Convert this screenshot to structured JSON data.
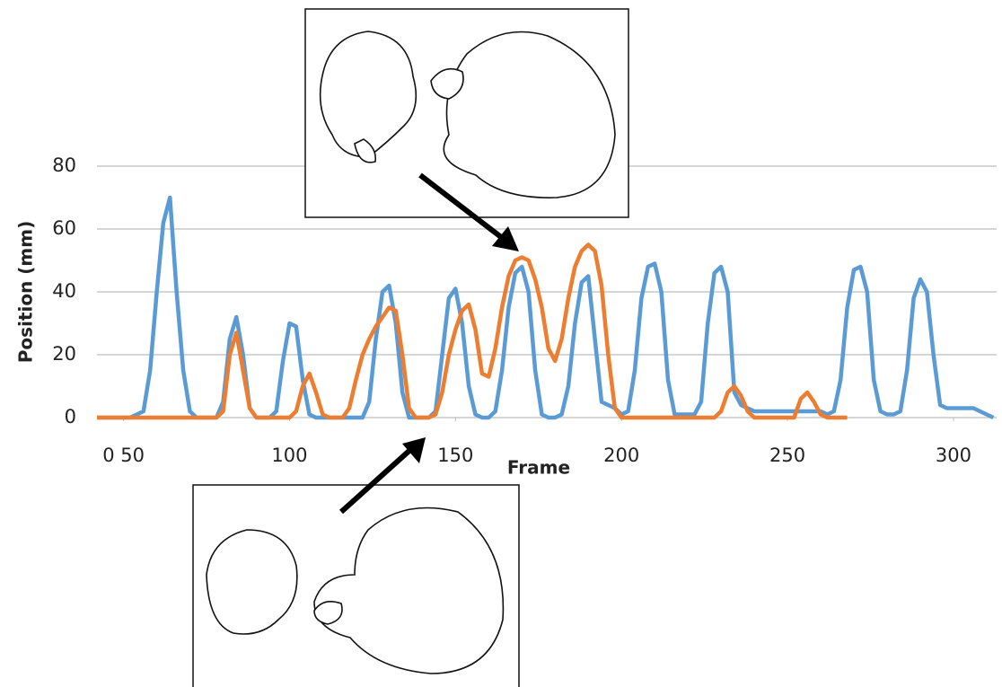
{
  "chart_data": {
    "type": "line",
    "x_label": "Frame",
    "y_label": "Position (mm)",
    "x": [
      42,
      44,
      46,
      48,
      50,
      52,
      54,
      56,
      58,
      60,
      62,
      64,
      66,
      68,
      70,
      72,
      74,
      76,
      78,
      80,
      82,
      84,
      86,
      88,
      90,
      92,
      94,
      96,
      98,
      100,
      102,
      104,
      106,
      108,
      110,
      112,
      114,
      116,
      118,
      120,
      122,
      124,
      126,
      128,
      130,
      132,
      134,
      136,
      138,
      140,
      142,
      144,
      146,
      148,
      150,
      152,
      154,
      156,
      158,
      160,
      162,
      164,
      166,
      168,
      170,
      172,
      174,
      176,
      178,
      180,
      182,
      184,
      186,
      188,
      190,
      192,
      194,
      196,
      198,
      200,
      202,
      204,
      206,
      208,
      210,
      212,
      214,
      216,
      218,
      220,
      222,
      224,
      226,
      228,
      230,
      232,
      234,
      236,
      238,
      240,
      242,
      244,
      246,
      248,
      250,
      252,
      254,
      256,
      258,
      260,
      262,
      264,
      266,
      268,
      270,
      272,
      274,
      276,
      278,
      280,
      282,
      284,
      286,
      288,
      290,
      292,
      294,
      296,
      298,
      300,
      302,
      304,
      306,
      308,
      310,
      312
    ],
    "series": [
      {
        "color": "#5b9bd5",
        "values": [
          0,
          0,
          0,
          0,
          0,
          0,
          1,
          2,
          15,
          40,
          62,
          70,
          40,
          15,
          2,
          0,
          0,
          0,
          0,
          5,
          25,
          32,
          20,
          3,
          0,
          0,
          0,
          2,
          18,
          30,
          29,
          12,
          1,
          0,
          0,
          0,
          0,
          0,
          0,
          0,
          0,
          5,
          25,
          40,
          42,
          30,
          8,
          0,
          0,
          0,
          0,
          2,
          20,
          38,
          41,
          30,
          10,
          1,
          0,
          0,
          2,
          15,
          35,
          46,
          48,
          40,
          15,
          1,
          0,
          0,
          1,
          10,
          30,
          43,
          45,
          25,
          5,
          4,
          3,
          1,
          2,
          15,
          38,
          48,
          49,
          40,
          12,
          1,
          1,
          1,
          1,
          5,
          30,
          46,
          48,
          40,
          8,
          4,
          3,
          2,
          2,
          2,
          2,
          2,
          2,
          2,
          2,
          2,
          2,
          2,
          1,
          2,
          12,
          35,
          47,
          48,
          40,
          12,
          2,
          1,
          1,
          2,
          15,
          38,
          44,
          40,
          20,
          4,
          3,
          3,
          3,
          3,
          3,
          2,
          1,
          0
        ]
      },
      {
        "color": "#ed7d31",
        "values": [
          0,
          0,
          0,
          0,
          0,
          0,
          0,
          0,
          0,
          0,
          0,
          0,
          0,
          0,
          0,
          0,
          0,
          0,
          0,
          2,
          20,
          27,
          15,
          3,
          0,
          0,
          0,
          0,
          0,
          0,
          2,
          10,
          14,
          8,
          1,
          0,
          0,
          0,
          3,
          12,
          20,
          25,
          29,
          32,
          35,
          34,
          20,
          3,
          0,
          0,
          0,
          1,
          8,
          20,
          28,
          34,
          36,
          28,
          14,
          13,
          22,
          35,
          45,
          50,
          51,
          50,
          44,
          35,
          22,
          18,
          25,
          38,
          48,
          53,
          55,
          53,
          42,
          20,
          3,
          0,
          0,
          0,
          0,
          0,
          0,
          0,
          0,
          0,
          0,
          0,
          0,
          0,
          0,
          0,
          2,
          8,
          10,
          7,
          2,
          0,
          0,
          0,
          0,
          0,
          0,
          0,
          6,
          8,
          5,
          1,
          0,
          0,
          0,
          0,
          null,
          null,
          null,
          null,
          null,
          null,
          null,
          null,
          null,
          null,
          null,
          null,
          null,
          null,
          null,
          null,
          null,
          null,
          null,
          null,
          null,
          null
        ]
      }
    ],
    "xlim": [
      42,
      313
    ],
    "xticks": [
      {
        "value": 50,
        "label": "0 50"
      },
      100,
      150,
      200,
      250,
      300
    ],
    "ylim": [
      0,
      80
    ],
    "yticks": [
      0,
      20,
      40,
      60,
      80
    ],
    "grid": true
  }
}
